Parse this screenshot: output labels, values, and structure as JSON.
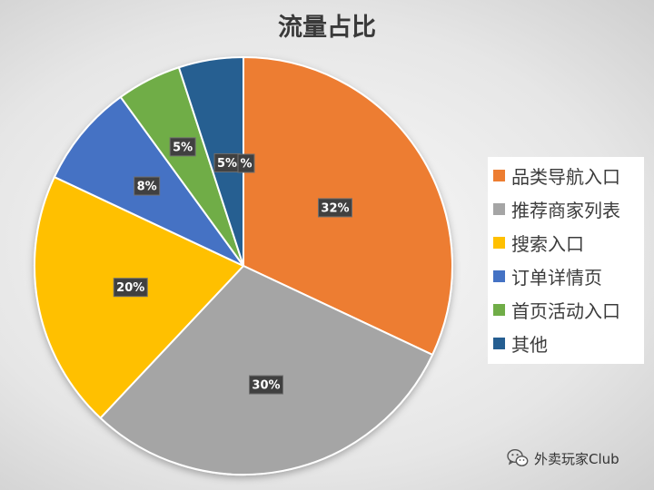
{
  "chart_data": {
    "type": "pie",
    "title": "流量占比",
    "categories": [
      "品类导航入口",
      "推荐商家列表",
      "搜索入口",
      "订单详情页",
      "首页活动入口",
      "其他"
    ],
    "values": [
      32,
      30,
      20,
      8,
      5,
      5
    ],
    "data_labels": [
      "32%",
      "30%",
      "20%",
      "8%",
      "5%",
      "5%"
    ],
    "colors": [
      "#ED7D31",
      "#A5A5A5",
      "#FFC000",
      "#4472C4",
      "#70AD47",
      "#255E91"
    ],
    "start_angle_deg": 0,
    "direction": "clockwise",
    "legend_position": "right",
    "stray_label": "%"
  },
  "watermark": {
    "icon": "wechat-icon",
    "text": "外卖玩家Club"
  }
}
